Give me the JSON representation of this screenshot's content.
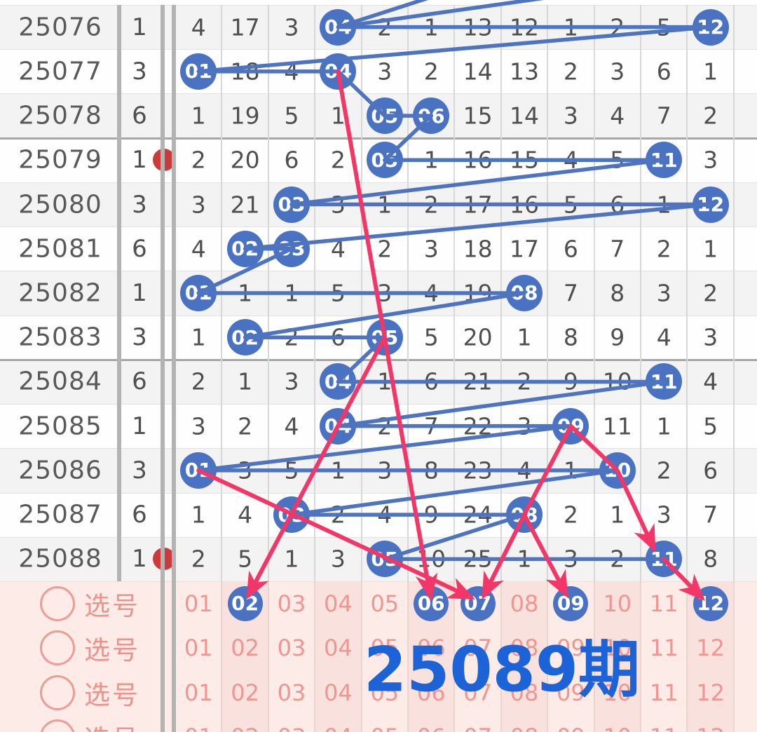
{
  "title_overlay": "25089期",
  "columns": [
    "01",
    "02",
    "03",
    "04",
    "05",
    "06",
    "07",
    "08",
    "09",
    "10",
    "11",
    "12"
  ],
  "periods": [
    {
      "period": "25076",
      "stat": "1",
      "cells": [
        "4",
        "17",
        "3",
        "04",
        "2",
        "1",
        "13",
        "12",
        "1",
        "2",
        "5",
        "12"
      ],
      "drawn": [
        4,
        12
      ]
    },
    {
      "period": "25077",
      "stat": "3",
      "cells": [
        "01",
        "18",
        "4",
        "04",
        "3",
        "2",
        "14",
        "13",
        "2",
        "3",
        "6",
        "1"
      ],
      "drawn": [
        1,
        4
      ]
    },
    {
      "period": "25078",
      "stat": "6",
      "cells": [
        "1",
        "19",
        "5",
        "1",
        "05",
        "06",
        "15",
        "14",
        "3",
        "4",
        "7",
        "2"
      ],
      "drawn": [
        5,
        6
      ]
    },
    {
      "period": "25079",
      "stat": "1",
      "cells": [
        "2",
        "20",
        "6",
        "2",
        "05",
        "1",
        "16",
        "15",
        "4",
        "5",
        "11",
        "3"
      ],
      "drawn": [
        5,
        11
      ]
    },
    {
      "period": "25080",
      "stat": "3",
      "cells": [
        "3",
        "21",
        "03",
        "3",
        "1",
        "2",
        "17",
        "16",
        "5",
        "6",
        "1",
        "12"
      ],
      "drawn": [
        3,
        12
      ]
    },
    {
      "period": "25081",
      "stat": "6",
      "cells": [
        "4",
        "02",
        "03",
        "4",
        "2",
        "3",
        "18",
        "17",
        "6",
        "7",
        "2",
        "1"
      ],
      "drawn": [
        2,
        3
      ]
    },
    {
      "period": "25082",
      "stat": "1",
      "cells": [
        "01",
        "1",
        "1",
        "5",
        "3",
        "4",
        "19",
        "08",
        "7",
        "8",
        "3",
        "2"
      ],
      "drawn": [
        1,
        8
      ]
    },
    {
      "period": "25083",
      "stat": "3",
      "cells": [
        "1",
        "02",
        "2",
        "6",
        "05",
        "5",
        "20",
        "1",
        "8",
        "9",
        "4",
        "3"
      ],
      "drawn": [
        2,
        5
      ]
    },
    {
      "period": "25084",
      "stat": "6",
      "cells": [
        "2",
        "1",
        "3",
        "04",
        "1",
        "6",
        "21",
        "2",
        "9",
        "10",
        "11",
        "4"
      ],
      "drawn": [
        4,
        11
      ]
    },
    {
      "period": "25085",
      "stat": "1",
      "cells": [
        "3",
        "2",
        "4",
        "04",
        "2",
        "7",
        "22",
        "3",
        "09",
        "11",
        "1",
        "5"
      ],
      "drawn": [
        4,
        9
      ]
    },
    {
      "period": "25086",
      "stat": "3",
      "cells": [
        "01",
        "3",
        "5",
        "1",
        "3",
        "8",
        "23",
        "4",
        "1",
        "10",
        "2",
        "6"
      ],
      "drawn": [
        1,
        10
      ]
    },
    {
      "period": "25087",
      "stat": "6",
      "cells": [
        "1",
        "4",
        "03",
        "2",
        "4",
        "9",
        "24",
        "08",
        "2",
        "1",
        "3",
        "7"
      ],
      "drawn": [
        3,
        8
      ]
    },
    {
      "period": "25088",
      "stat": "1",
      "cells": [
        "2",
        "5",
        "1",
        "3",
        "05",
        "10",
        "25",
        "1",
        "3",
        "2",
        "11",
        "8"
      ],
      "drawn": [
        5,
        11
      ]
    }
  ],
  "red_marked_rows": [
    3,
    12
  ],
  "selection_rows": [
    {
      "label": "选号",
      "selected": [
        2,
        6,
        7,
        9,
        12
      ]
    },
    {
      "label": "选号",
      "selected": []
    },
    {
      "label": "选号",
      "selected": []
    },
    {
      "label": "选号",
      "selected": []
    }
  ],
  "pink_arrows": [
    {
      "points": [
        [
          "p",
          1,
          4
        ],
        [
          "p",
          7,
          5
        ],
        [
          "s",
          0,
          6
        ]
      ],
      "head": true,
      "end_offset": [
        0,
        -4
      ]
    },
    {
      "points": [
        [
          "p",
          7,
          5
        ],
        [
          "s",
          0,
          2
        ]
      ],
      "head": true,
      "end_offset": [
        2,
        -6
      ]
    },
    {
      "points": [
        [
          "p",
          10,
          1
        ],
        [
          "s",
          0,
          7
        ]
      ],
      "head": true,
      "end_offset": [
        -4,
        -6
      ]
    },
    {
      "points": [
        [
          "p",
          9,
          9
        ],
        [
          "p",
          11,
          8
        ],
        [
          "s",
          0,
          9
        ]
      ],
      "head": true,
      "end_offset": [
        -4,
        -8
      ]
    },
    {
      "points": [
        [
          "p",
          11,
          8
        ],
        [
          "s",
          0,
          7
        ]
      ],
      "head": true,
      "end_offset": [
        6,
        -6
      ]
    },
    {
      "points": [
        [
          "p",
          9,
          9
        ],
        [
          "p",
          10,
          10
        ],
        [
          "p",
          12,
          11
        ]
      ],
      "head": true,
      "end_offset": [
        -12,
        -10
      ]
    },
    {
      "points": [
        [
          "p",
          12,
          11
        ],
        [
          "s",
          0,
          12
        ]
      ],
      "head": true,
      "end_offset": [
        -8,
        -4
      ]
    }
  ],
  "colors": {
    "ball_blue": "#4a72c2",
    "line_blue": "#4e74bf",
    "arrow_pink": "#f23667",
    "title_blue": "#1b63d6",
    "pink_text": "#f0958f",
    "pink_bg": "#fcebe7",
    "gray_text": "#4f4f4f"
  }
}
